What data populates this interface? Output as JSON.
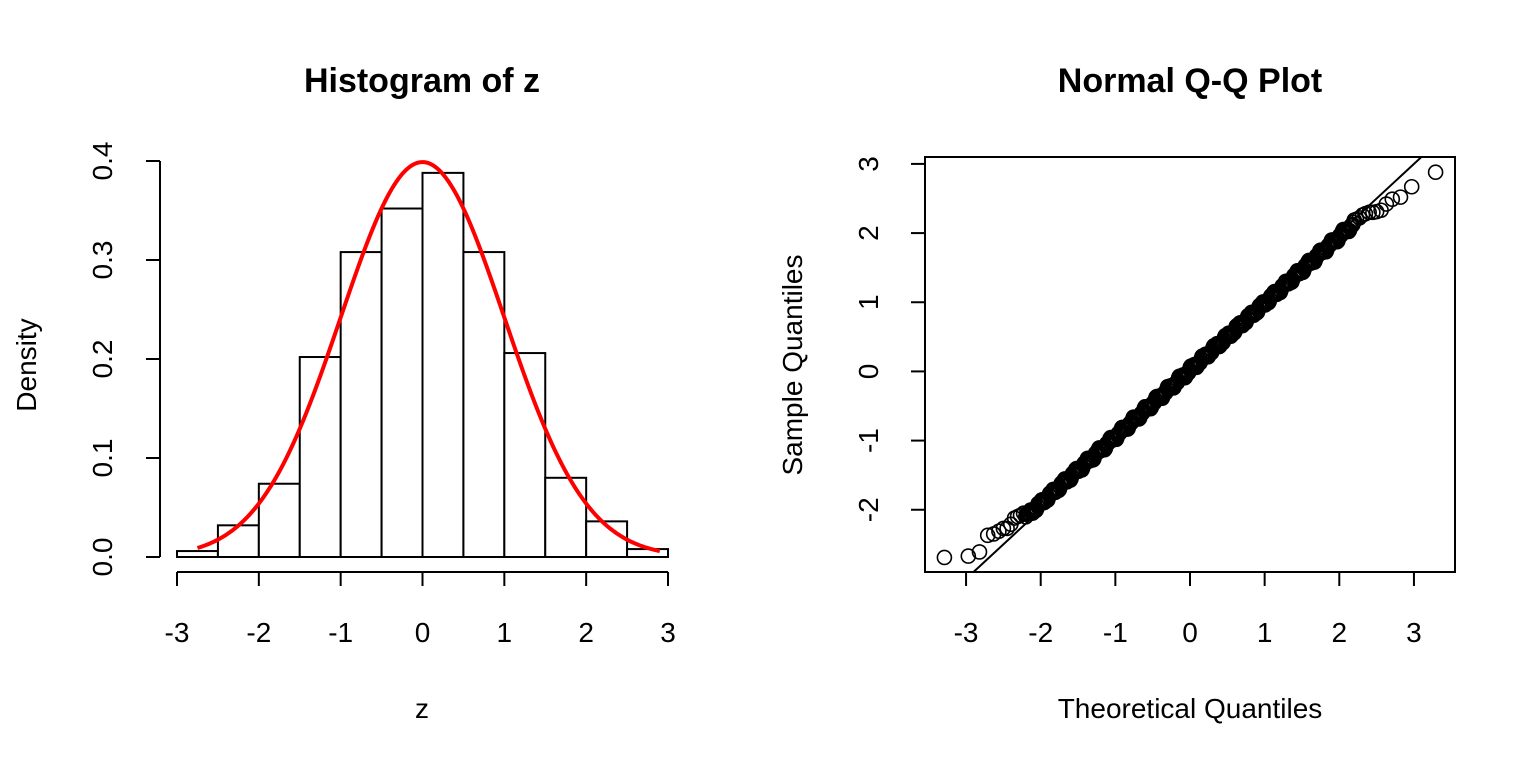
{
  "chart_data": [
    {
      "type": "histogram",
      "title": "Histogram of z",
      "xlabel": "z",
      "ylabel": "Density",
      "x_ticks": [
        -3,
        -2,
        -1,
        0,
        1,
        2,
        3
      ],
      "y_ticks": [
        0.0,
        0.1,
        0.2,
        0.3,
        0.4
      ],
      "y_tick_labels": [
        "0.0",
        "0.1",
        "0.2",
        "0.3",
        "0.4"
      ],
      "xlim": [
        -3,
        3
      ],
      "ylim": [
        0,
        0.4
      ],
      "bins": [
        {
          "from": -3.0,
          "to": -2.5,
          "density": 0.006
        },
        {
          "from": -2.5,
          "to": -2.0,
          "density": 0.032
        },
        {
          "from": -2.0,
          "to": -1.5,
          "density": 0.074
        },
        {
          "from": -1.5,
          "to": -1.0,
          "density": 0.202
        },
        {
          "from": -1.0,
          "to": -0.5,
          "density": 0.308
        },
        {
          "from": -0.5,
          "to": 0.0,
          "density": 0.352
        },
        {
          "from": 0.0,
          "to": 0.5,
          "density": 0.388
        },
        {
          "from": 0.5,
          "to": 1.0,
          "density": 0.308
        },
        {
          "from": 1.0,
          "to": 1.5,
          "density": 0.206
        },
        {
          "from": 1.5,
          "to": 2.0,
          "density": 0.08
        },
        {
          "from": 2.0,
          "to": 2.5,
          "density": 0.036
        },
        {
          "from": 2.5,
          "to": 3.0,
          "density": 0.008
        }
      ],
      "overlay": {
        "type": "line",
        "color": "#ff0000",
        "description_function": "normal-density",
        "mean": 0,
        "sd": 1,
        "x_range": [
          -2.75,
          2.9
        ]
      },
      "grid": false
    },
    {
      "type": "scatter",
      "title": "Normal Q-Q Plot",
      "xlabel": "Theoretical Quantiles",
      "ylabel": "Sample Quantiles",
      "x_ticks": [
        -3,
        -2,
        -1,
        0,
        1,
        2,
        3
      ],
      "y_ticks": [
        -2,
        -1,
        0,
        1,
        2,
        3
      ],
      "xlim": [
        -3.55,
        3.55
      ],
      "ylim": [
        -2.9,
        3.1
      ],
      "reference_line": {
        "intercept": 0,
        "slope": 1
      },
      "extreme_points": [
        {
          "x": -3.29,
          "y": -2.69
        },
        {
          "x": -2.97,
          "y": -2.67
        },
        {
          "x": -2.82,
          "y": -2.61
        },
        {
          "x": -2.71,
          "y": -2.37
        },
        {
          "x": -2.63,
          "y": -2.35
        },
        {
          "x": -2.56,
          "y": -2.31
        },
        {
          "x": -2.5,
          "y": -2.27
        },
        {
          "x": -2.45,
          "y": -2.27
        },
        {
          "x": -2.4,
          "y": -2.21
        },
        {
          "x": -2.35,
          "y": -2.12
        },
        {
          "x": -2.31,
          "y": -2.1
        },
        {
          "x": -2.27,
          "y": -2.08
        },
        {
          "x": -2.23,
          "y": -2.05
        },
        {
          "x": 2.23,
          "y": 2.2
        },
        {
          "x": 2.27,
          "y": 2.22
        },
        {
          "x": 2.31,
          "y": 2.26
        },
        {
          "x": 2.35,
          "y": 2.28
        },
        {
          "x": 2.4,
          "y": 2.3
        },
        {
          "x": 2.45,
          "y": 2.3
        },
        {
          "x": 2.5,
          "y": 2.31
        },
        {
          "x": 2.56,
          "y": 2.33
        },
        {
          "x": 2.63,
          "y": 2.42
        },
        {
          "x": 2.71,
          "y": 2.49
        },
        {
          "x": 2.82,
          "y": 2.52
        },
        {
          "x": 2.97,
          "y": 2.67
        },
        {
          "x": 3.29,
          "y": 2.88
        }
      ],
      "dense_band": {
        "x_range": [
          -2.2,
          2.2
        ],
        "points_count": 480,
        "slope": 0.965,
        "intercept": 0.02
      },
      "grid": false
    }
  ]
}
